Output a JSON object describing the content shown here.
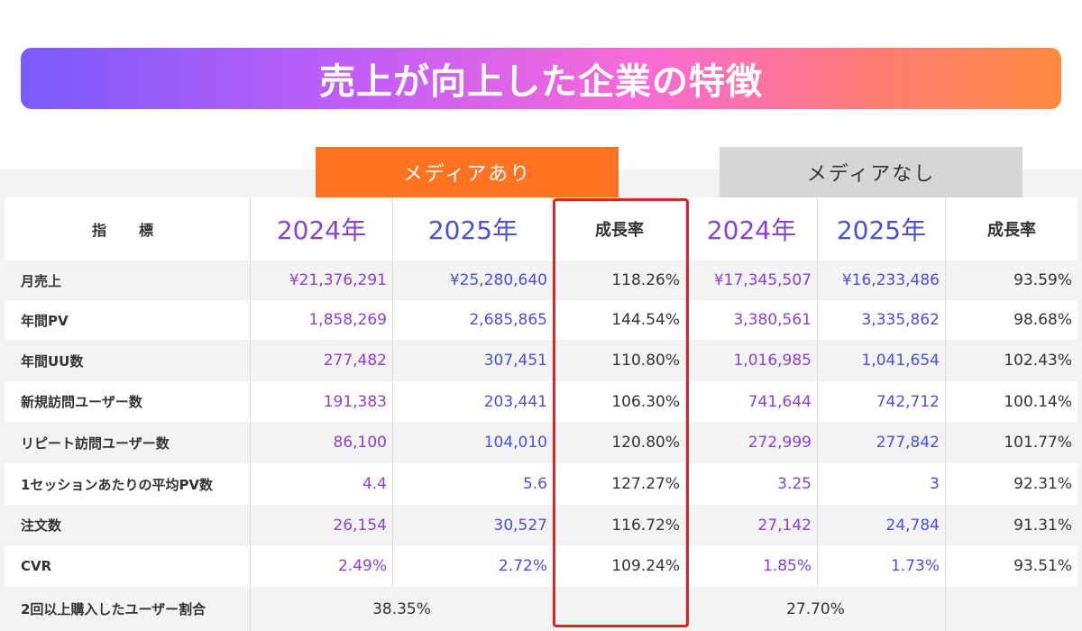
{
  "title": "売上が向上した企業の特徴",
  "groups": {
    "with_media": "メディアあり",
    "without_media": "メディアなし"
  },
  "header": {
    "indicator": "指　標",
    "with_media": {
      "y2024": "2024年",
      "y2025": "2025年",
      "growth": "成長率"
    },
    "without_media": {
      "y2024": "2024年",
      "y2025": "2025年",
      "growth": "成長率"
    }
  },
  "rows": [
    {
      "label": "月売上",
      "m2024": "¥21,376,291",
      "m2025": "¥25,280,640",
      "mgrowth": "118.26%",
      "n2024": "¥17,345,507",
      "n2025": "¥16,233,486",
      "ngrowth": "93.59%"
    },
    {
      "label": "年間PV",
      "m2024": "1,858,269",
      "m2025": "2,685,865",
      "mgrowth": "144.54%",
      "n2024": "3,380,561",
      "n2025": "3,335,862",
      "ngrowth": "98.68%"
    },
    {
      "label": "年間UU数",
      "m2024": "277,482",
      "m2025": "307,451",
      "mgrowth": "110.80%",
      "n2024": "1,016,985",
      "n2025": "1,041,654",
      "ngrowth": "102.43%"
    },
    {
      "label": "新規訪問ユーザー数",
      "m2024": "191,383",
      "m2025": "203,441",
      "mgrowth": "106.30%",
      "n2024": "741,644",
      "n2025": "742,712",
      "ngrowth": "100.14%"
    },
    {
      "label": "リピート訪問ユーザー数",
      "m2024": "86,100",
      "m2025": "104,010",
      "mgrowth": "120.80%",
      "n2024": "272,999",
      "n2025": "277,842",
      "ngrowth": "101.77%"
    },
    {
      "label": "1セッションあたりの平均PV数",
      "m2024": "4.4",
      "m2025": "5.6",
      "mgrowth": "127.27%",
      "n2024": "3.25",
      "n2025": "3",
      "ngrowth": "92.31%"
    },
    {
      "label": "注文数",
      "m2024": "26,154",
      "m2025": "30,527",
      "mgrowth": "116.72%",
      "n2024": "27,142",
      "n2025": "24,784",
      "ngrowth": "91.31%"
    },
    {
      "label": "CVR",
      "m2024": "2.49%",
      "m2025": "2.72%",
      "mgrowth": "109.24%",
      "n2024": "1.85%",
      "n2025": "1.73%",
      "ngrowth": "93.51%"
    }
  ],
  "repeat_row": {
    "label": "2回以上購入したユーザー割合",
    "with_media": "38.35%",
    "without_media": "27.70%"
  },
  "colors": {
    "accent_orange": "#ff7321",
    "highlight_red": "#e02222",
    "year2024": "#8d3fd2",
    "year2025": "#4a4fdc"
  }
}
